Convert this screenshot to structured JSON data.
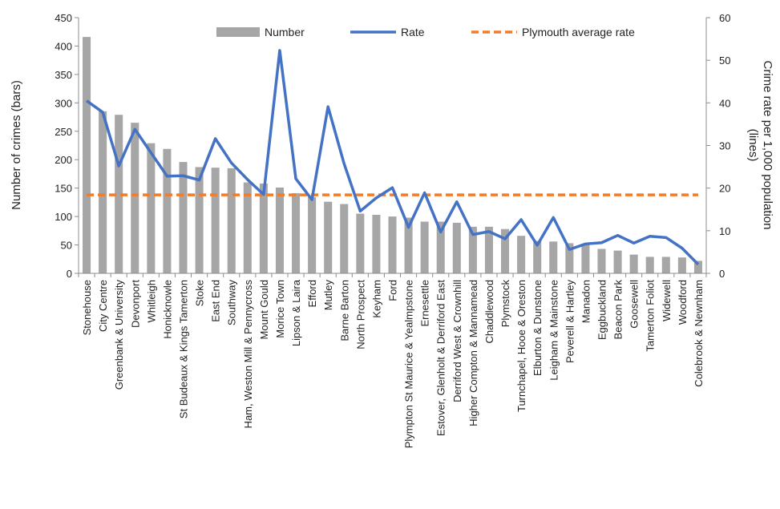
{
  "chart_data": {
    "type": "bar",
    "categories": [
      "Stonehouse",
      "City Centre",
      "Greenbank & University",
      "Devonport",
      "Whitleigh",
      "Honicknowle",
      "St Budeaux & Kings Tamerton",
      "Stoke",
      "East End",
      "Southway",
      "Ham, Weston Mill & Pennycross",
      "Mount Gould",
      "Morice Town",
      "Lipson & Laira",
      "Efford",
      "Mutley",
      "Barne Barton",
      "North Prospect",
      "Keyham",
      "Ford",
      "Plympton St Maurice & Yealmpstone",
      "Ernesettle",
      "Estover, Glenholt & Derriford East",
      "Derriford West & Crownhill",
      "Higher Compton & Mannamead",
      "Chaddlewood",
      "Plymstock",
      "Turnchapel, Hooe & Oreston",
      "Elburton & Dunstone",
      "Leigham & Mainstone",
      "Peverell & Hartley",
      "Manadon",
      "Eggbuckland",
      "Beacon Park",
      "Goosewell",
      "Tamerton Foliot",
      "Widewell",
      "Woodford",
      "Colebrook & Newnham"
    ],
    "series": [
      {
        "name": "Number",
        "axis": "left",
        "kind": "bar",
        "color": "#a6a6a6",
        "values": [
          416,
          285,
          279,
          265,
          229,
          219,
          196,
          187,
          186,
          185,
          160,
          158,
          151,
          141,
          134,
          126,
          122,
          105,
          103,
          100,
          98,
          91,
          91,
          89,
          82,
          82,
          78,
          66,
          57,
          56,
          53,
          52,
          43,
          40,
          33,
          29,
          29,
          28,
          22
        ]
      },
      {
        "name": "Rate",
        "axis": "right",
        "kind": "line",
        "color": "#4472c4",
        "values": [
          40.5,
          37.8,
          25.2,
          33.8,
          28.3,
          22.8,
          22.9,
          21.9,
          31.6,
          25.9,
          22.0,
          18.5,
          52.3,
          22.2,
          17.3,
          39.1,
          25.7,
          14.6,
          17.7,
          20.1,
          10.8,
          18.9,
          9.7,
          16.8,
          9.1,
          9.8,
          8.1,
          12.6,
          6.6,
          13.1,
          5.6,
          6.9,
          7.2,
          8.9,
          7.1,
          8.7,
          8.4,
          5.9,
          2.1
        ]
      },
      {
        "name": "Plymouth average rate",
        "axis": "right",
        "kind": "line",
        "color": "#ed7d31",
        "dashed": true,
        "values": [
          18.4,
          18.4,
          18.4,
          18.4,
          18.4,
          18.4,
          18.4,
          18.4,
          18.4,
          18.4,
          18.4,
          18.4,
          18.4,
          18.4,
          18.4,
          18.4,
          18.4,
          18.4,
          18.4,
          18.4,
          18.4,
          18.4,
          18.4,
          18.4,
          18.4,
          18.4,
          18.4,
          18.4,
          18.4,
          18.4,
          18.4,
          18.4,
          18.4,
          18.4,
          18.4,
          18.4,
          18.4,
          18.4,
          18.4
        ]
      }
    ],
    "ylabel": "Number  of crimes (bars)",
    "y2label_lines": [
      "Crime rate per 1,000 population",
      "(lines)"
    ],
    "ylim": [
      0,
      450
    ],
    "yticks": [
      0,
      50,
      100,
      150,
      200,
      250,
      300,
      350,
      400,
      450
    ],
    "y2lim": [
      0,
      60
    ],
    "y2ticks": [
      0,
      10,
      20,
      30,
      40,
      50,
      60
    ],
    "legend_position": "top",
    "grid": false
  }
}
